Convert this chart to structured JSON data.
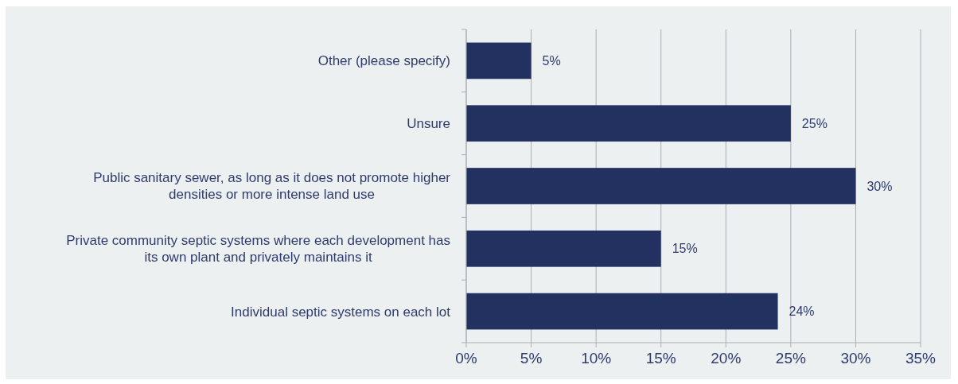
{
  "chart_data": {
    "type": "bar",
    "orientation": "horizontal",
    "categories": [
      "Other (please specify)",
      "Unsure",
      "Public sanitary sewer, as long as it does not promote higher densities or more intense land use",
      "Private community septic systems where each development has its own plant and privately maintains it",
      "Individual septic systems on each lot"
    ],
    "values": [
      5,
      25,
      30,
      15,
      24
    ],
    "value_labels": [
      "5%",
      "25%",
      "30%",
      "15%",
      "24%"
    ],
    "color": "#22315f",
    "xlim": [
      0,
      35
    ],
    "xticks": [
      {
        "value": 0,
        "label": "0%"
      },
      {
        "value": 5,
        "label": "5%"
      },
      {
        "value": 10,
        "label": "10%"
      },
      {
        "value": 15,
        "label": "15%"
      },
      {
        "value": 20,
        "label": "20%"
      },
      {
        "value": 25,
        "label": "25%"
      },
      {
        "value": 30,
        "label": "30%"
      },
      {
        "value": 35,
        "label": "35%"
      }
    ],
    "grid": "x"
  }
}
